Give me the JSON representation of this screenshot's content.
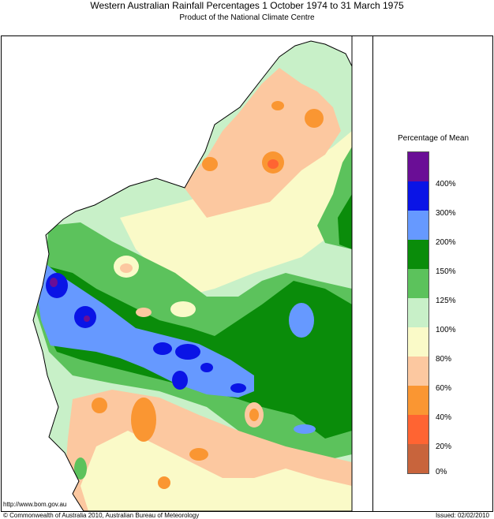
{
  "header": {
    "title": "Western Australian Rainfall Percentages 1 October 1974 to 31 March 1975",
    "subtitle": "Product of the National Climate Centre"
  },
  "legend": {
    "title": "Percentage of Mean",
    "classes": [
      {
        "label": "",
        "color": "#6a0e96"
      },
      {
        "label": "400%",
        "color": "#0a14e6"
      },
      {
        "label": "300%",
        "color": "#6699ff"
      },
      {
        "label": "200%",
        "color": "#0a8c0a"
      },
      {
        "label": "150%",
        "color": "#5cc25c"
      },
      {
        "label": "125%",
        "color": "#c8f0c8"
      },
      {
        "label": "100%",
        "color": "#fafac8"
      },
      {
        "label": "80%",
        "color": "#fcc8a0"
      },
      {
        "label": "60%",
        "color": "#fa9632"
      },
      {
        "label": "40%",
        "color": "#ff6432"
      },
      {
        "label": "20%",
        "color": "#c8643c"
      }
    ],
    "bottom_label": "0%"
  },
  "footer": {
    "url": "http://www.bom.gov.au",
    "copyright": "© Commonwealth of Australia 2010, Australian Bureau of Meteorology",
    "issued": "Issued: 02/02/2010"
  }
}
